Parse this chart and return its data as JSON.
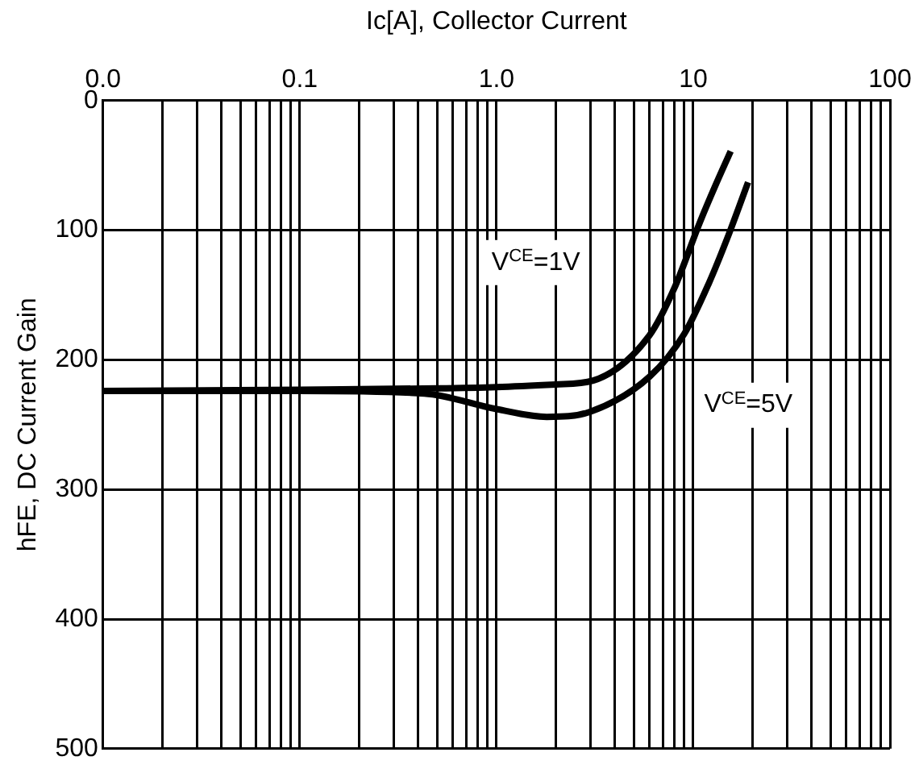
{
  "chart_data": {
    "type": "line",
    "xlabel": "Ic[A], Collector Current",
    "ylabel": "hFE, DC Current Gain",
    "log": "x",
    "xlim": [
      0.01,
      100
    ],
    "xticks": [
      {
        "value": 0.01,
        "label": "0.0"
      },
      {
        "value": 0.1,
        "label": "0.1"
      },
      {
        "value": 1,
        "label": "1.0"
      },
      10,
      100
    ],
    "ylim": [
      500,
      0
    ],
    "yticks": [
      0,
      100,
      200,
      300,
      400,
      500
    ],
    "grid": true,
    "legend": false,
    "marker": "none",
    "line_style": "solid",
    "series": [
      {
        "color": "#000000",
        "x": [
          0.01,
          0.1,
          0.5,
          1,
          2,
          3.1,
          6,
          8,
          10.8,
          13,
          15.5
        ],
        "values": [
          224,
          223,
          222,
          221,
          219,
          216,
          181,
          145,
          94,
          65,
          39
        ]
      },
      {
        "color": "#000000",
        "x": [
          0.01,
          0.1,
          0.43,
          1,
          1.8,
          3,
          6,
          9,
          12,
          15,
          19
        ],
        "values": [
          224,
          224,
          226,
          238,
          244,
          240,
          213,
          180,
          141,
          105,
          63
        ]
      }
    ],
    "annotations": [
      "V$^{CE}$=1V",
      "V$^{CE}$=5V"
    ]
  }
}
